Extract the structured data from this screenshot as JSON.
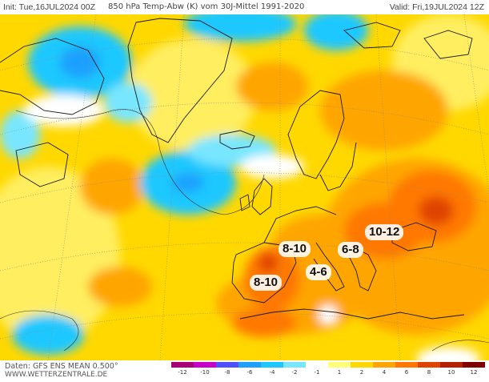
{
  "header": {
    "init": "Init: Tue,16JUL2024 00Z",
    "title": "850 hPa Temp-Abw (K) vom 30J-Mittel 1991-2020",
    "valid": "Valid: Fri,19JUL2024 12Z"
  },
  "footer": {
    "source": "Daten: GFS ENS MEAN 0.500°",
    "site": "WWW.WETTERZENTRALE.DE"
  },
  "annotations": [
    {
      "id": "spain",
      "label": "8-10"
    },
    {
      "id": "france",
      "label": "8-10"
    },
    {
      "id": "italy",
      "label": "4-6"
    },
    {
      "id": "adriatic",
      "label": "6-8"
    },
    {
      "id": "balkans",
      "label": "10-12"
    }
  ],
  "legend": {
    "labels": [
      "-12",
      "-10",
      "-8",
      "-6",
      "-4",
      "-2",
      "-1",
      "1",
      "2",
      "4",
      "6",
      "8",
      "10",
      "12"
    ],
    "colors": [
      "#a9007a",
      "#c800c8",
      "#5050ff",
      "#1ea0ff",
      "#1ec8ff",
      "#78e6ff",
      "#ffffff",
      "#ffff7a",
      "#ffd800",
      "#ffa500",
      "#ff7800",
      "#e04400",
      "#b42000",
      "#800000"
    ]
  }
}
